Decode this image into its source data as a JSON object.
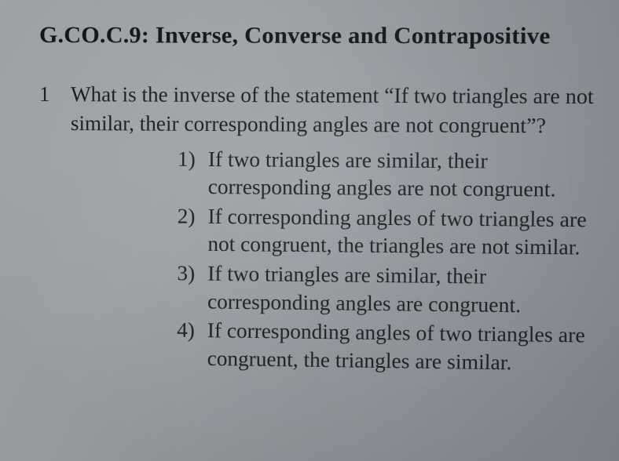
{
  "colors": {
    "text": "#1a1c1e",
    "background_gradient": [
      "#b0b4b8",
      "#a8acb0",
      "#989ca2",
      "#8a8e96"
    ]
  },
  "typography": {
    "family": "Times New Roman",
    "heading_size_pt": 22,
    "body_size_pt": 20,
    "heading_weight": "bold"
  },
  "heading": "G.CO.C.9: Inverse, Converse and Contrapositive",
  "question": {
    "number": "1",
    "stem": "What is the inverse of the statement “If two triangles are not similar, their corresponding angles are not congruent”?",
    "choices": [
      {
        "num": "1)",
        "text": "If two triangles are similar, their corresponding angles are not congruent."
      },
      {
        "num": "2)",
        "text": "If corresponding angles of two triangles are not congruent, the triangles are not similar."
      },
      {
        "num": "3)",
        "text": "If two triangles are similar, their corresponding angles are congruent."
      },
      {
        "num": "4)",
        "text": "If corresponding angles of two triangles are congruent, the triangles are similar."
      }
    ]
  }
}
